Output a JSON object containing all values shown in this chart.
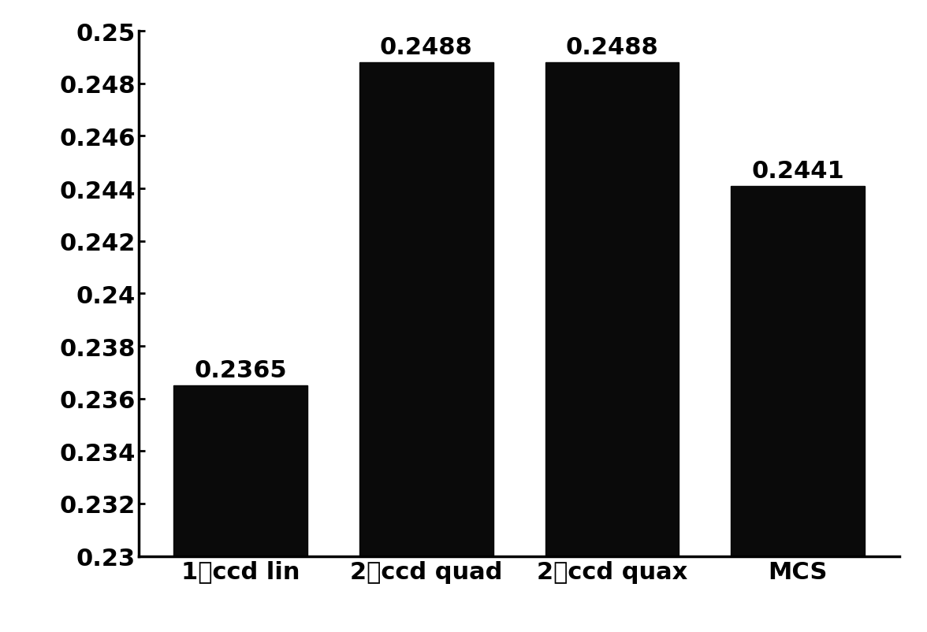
{
  "categories": [
    "1阶ccd lin",
    "2阶ccd quad",
    "2阶ccd quax",
    "MCS"
  ],
  "values": [
    0.2365,
    0.2488,
    0.2488,
    0.2441
  ],
  "bar_color": "#0a0a0a",
  "ylim": [
    0.23,
    0.25
  ],
  "yticks": [
    0.23,
    0.232,
    0.234,
    0.236,
    0.238,
    0.24,
    0.242,
    0.244,
    0.246,
    0.248,
    0.25
  ],
  "ytick_labels": [
    "0.23",
    "0.232",
    "0.234",
    "0.236",
    "0.238",
    "0.24",
    "0.242",
    "0.244",
    "0.246",
    "0.248",
    "0.25"
  ],
  "bar_width": 0.72,
  "label_fontsize": 22,
  "tick_fontsize": 22,
  "value_fontsize": 22,
  "background_color": "#ffffff",
  "value_labels": [
    "0.2365",
    "0.2488",
    "0.2488",
    "0.2441"
  ]
}
